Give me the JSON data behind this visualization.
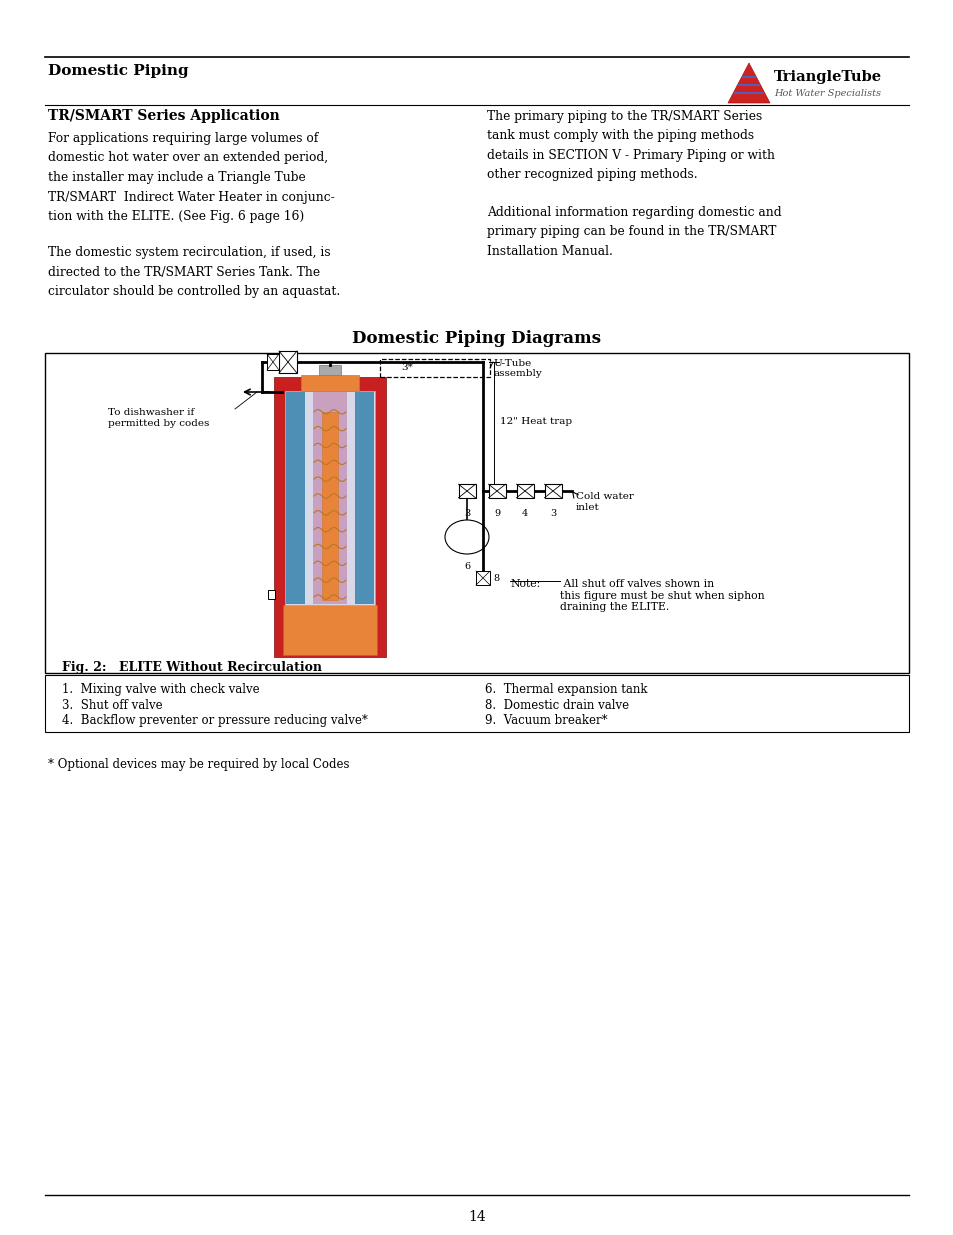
{
  "page_width": 9.54,
  "page_height": 12.35,
  "bg_color": "#ffffff",
  "section_title": "Domestic Piping",
  "logo_text": "TriangleTube",
  "logo_sub": "Hot Water Specialists",
  "subsection_title": "TR/SMART Series Application",
  "left_col_para1": [
    "For applications requiring large volumes of",
    "domestic hot water over an extended period,",
    "the installer may include a Triangle Tube",
    "TR/SMART  Indirect Water Heater in conjunc-",
    "tion with the ELITE. (See Fig. 6 page 16)"
  ],
  "left_col_para2": [
    "The domestic system recirculation, if used, is",
    "directed to the TR/SMART Series Tank. The",
    "circulator should be controlled by an aquastat."
  ],
  "right_col_para1": [
    "The primary piping to the TR/SMART Series",
    "tank must comply with the piping methods",
    "details in SECTION V - Primary Piping or with",
    "other recognized piping methods."
  ],
  "right_col_para2": [
    "Additional information regarding domestic and",
    "primary piping can be found in the TR/SMART",
    "Installation Manual."
  ],
  "diagram_title": "Domestic Piping Diagrams",
  "fig_caption": "Fig. 2: ELITE Without Recirculation",
  "note_label": "Note:",
  "note_body": " All shut off valves shown in\nthis figure must be shut when siphon\ndraining the ELITE.",
  "legend_left": [
    "1.  Mixing valve with check valve",
    "3.  Shut off valve",
    "4.  Backflow preventer or pressure reducing valve*"
  ],
  "legend_right": [
    "6.  Thermal expansion tank",
    "8.  Domestic drain valve",
    "9.  Vacuum breaker*"
  ],
  "footer_note": "* Optional devices may be required by local Codes",
  "page_number": "14",
  "label_utube": "U-Tube\nassembly",
  "label_heat_trap": "12\" Heat trap",
  "label_cold_water": "Cold water\ninlet",
  "label_dishwasher": "To dishwasher if\npermitted by codes",
  "label_3star": "3*",
  "label_numbers": [
    "3",
    "9",
    "4",
    "3"
  ],
  "label_8": "8",
  "label_6": "6",
  "tank_red": "#c82020",
  "tank_orange": "#e8843a",
  "tank_blue": "#4d8fb5",
  "tank_pink": "#c9a0c0",
  "tank_inner_bg": "#d8d8e8"
}
